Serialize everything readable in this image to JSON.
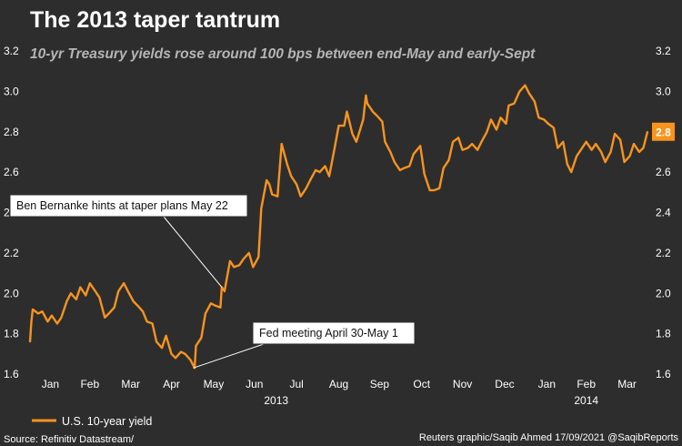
{
  "chart_data": {
    "type": "line",
    "title": "The 2013 taper tantrum",
    "subtitle": "10-yr Treasury yields rose around 100 bps between end-May and early-Sept",
    "ylim": [
      1.6,
      3.2
    ],
    "y_ticks": [
      "1.6",
      "1.8",
      "2.0",
      "2.2",
      "2.4",
      "2.6",
      "2.8",
      "3.0",
      "3.2"
    ],
    "x_start": "2013-01-01",
    "x_end": "2014-03-31",
    "month_labels": [
      {
        "label": "Jan",
        "date": "2013-01-16"
      },
      {
        "label": "Feb",
        "date": "2013-02-14"
      },
      {
        "label": "Mar",
        "date": "2013-03-16"
      },
      {
        "label": "Apr",
        "date": "2013-04-15"
      },
      {
        "label": "May",
        "date": "2013-05-16"
      },
      {
        "label": "Jun",
        "date": "2013-06-15"
      },
      {
        "label": "Jul",
        "date": "2013-07-16"
      },
      {
        "label": "Aug",
        "date": "2013-08-16"
      },
      {
        "label": "Sep",
        "date": "2013-09-15"
      },
      {
        "label": "Oct",
        "date": "2013-10-16"
      },
      {
        "label": "Nov",
        "date": "2013-11-15"
      },
      {
        "label": "Dec",
        "date": "2013-12-16"
      },
      {
        "label": "Jan",
        "date": "2014-01-16"
      },
      {
        "label": "Feb",
        "date": "2014-02-14"
      },
      {
        "label": "Mar",
        "date": "2014-03-16"
      }
    ],
    "year_labels": [
      {
        "label": "2013",
        "date": "2013-07-01"
      },
      {
        "label": "2014",
        "date": "2014-02-14"
      }
    ],
    "grid": false,
    "legend_position": "bottom-left",
    "series": [
      {
        "name": "U.S. 10-year yield",
        "color": "#f7941d",
        "points": [
          [
            "2013-01-01",
            1.76
          ],
          [
            "2013-01-02",
            1.86
          ],
          [
            "2013-01-03",
            1.92
          ],
          [
            "2013-01-07",
            1.9
          ],
          [
            "2013-01-10",
            1.91
          ],
          [
            "2013-01-14",
            1.86
          ],
          [
            "2013-01-17",
            1.89
          ],
          [
            "2013-01-21",
            1.85
          ],
          [
            "2013-01-24",
            1.88
          ],
          [
            "2013-01-28",
            1.96
          ],
          [
            "2013-01-31",
            2.0
          ],
          [
            "2013-02-04",
            1.97
          ],
          [
            "2013-02-07",
            2.03
          ],
          [
            "2013-02-11",
            1.99
          ],
          [
            "2013-02-14",
            2.05
          ],
          [
            "2013-02-18",
            2.01
          ],
          [
            "2013-02-21",
            1.98
          ],
          [
            "2013-02-25",
            1.88
          ],
          [
            "2013-02-28",
            1.9
          ],
          [
            "2013-03-04",
            1.93
          ],
          [
            "2013-03-07",
            2.01
          ],
          [
            "2013-03-11",
            2.05
          ],
          [
            "2013-03-14",
            2.01
          ],
          [
            "2013-03-18",
            1.96
          ],
          [
            "2013-03-21",
            1.94
          ],
          [
            "2013-03-25",
            1.91
          ],
          [
            "2013-03-28",
            1.86
          ],
          [
            "2013-04-01",
            1.85
          ],
          [
            "2013-04-04",
            1.76
          ],
          [
            "2013-04-08",
            1.73
          ],
          [
            "2013-04-11",
            1.79
          ],
          [
            "2013-04-15",
            1.7
          ],
          [
            "2013-04-18",
            1.68
          ],
          [
            "2013-04-22",
            1.71
          ],
          [
            "2013-04-25",
            1.7
          ],
          [
            "2013-04-29",
            1.67
          ],
          [
            "2013-05-02",
            1.63
          ],
          [
            "2013-05-03",
            1.74
          ],
          [
            "2013-05-07",
            1.78
          ],
          [
            "2013-05-10",
            1.9
          ],
          [
            "2013-05-14",
            1.95
          ],
          [
            "2013-05-17",
            1.94
          ],
          [
            "2013-05-21",
            1.93
          ],
          [
            "2013-05-22",
            2.03
          ],
          [
            "2013-05-24",
            2.01
          ],
          [
            "2013-05-28",
            2.16
          ],
          [
            "2013-05-31",
            2.13
          ],
          [
            "2013-06-04",
            2.14
          ],
          [
            "2013-06-07",
            2.17
          ],
          [
            "2013-06-11",
            2.2
          ],
          [
            "2013-06-14",
            2.13
          ],
          [
            "2013-06-18",
            2.18
          ],
          [
            "2013-06-20",
            2.42
          ],
          [
            "2013-06-24",
            2.56
          ],
          [
            "2013-06-26",
            2.54
          ],
          [
            "2013-06-28",
            2.49
          ],
          [
            "2013-07-02",
            2.48
          ],
          [
            "2013-07-05",
            2.74
          ],
          [
            "2013-07-09",
            2.64
          ],
          [
            "2013-07-12",
            2.58
          ],
          [
            "2013-07-16",
            2.54
          ],
          [
            "2013-07-19",
            2.48
          ],
          [
            "2013-07-23",
            2.52
          ],
          [
            "2013-07-26",
            2.56
          ],
          [
            "2013-07-30",
            2.61
          ],
          [
            "2013-08-02",
            2.6
          ],
          [
            "2013-08-06",
            2.63
          ],
          [
            "2013-08-09",
            2.58
          ],
          [
            "2013-08-13",
            2.72
          ],
          [
            "2013-08-16",
            2.83
          ],
          [
            "2013-08-20",
            2.83
          ],
          [
            "2013-08-22",
            2.9
          ],
          [
            "2013-08-26",
            2.79
          ],
          [
            "2013-08-29",
            2.75
          ],
          [
            "2013-09-03",
            2.86
          ],
          [
            "2013-09-05",
            2.98
          ],
          [
            "2013-09-06",
            2.94
          ],
          [
            "2013-09-10",
            2.9
          ],
          [
            "2013-09-13",
            2.88
          ],
          [
            "2013-09-17",
            2.85
          ],
          [
            "2013-09-19",
            2.75
          ],
          [
            "2013-09-23",
            2.7
          ],
          [
            "2013-09-26",
            2.65
          ],
          [
            "2013-09-30",
            2.61
          ],
          [
            "2013-10-03",
            2.62
          ],
          [
            "2013-10-07",
            2.63
          ],
          [
            "2013-10-10",
            2.69
          ],
          [
            "2013-10-15",
            2.73
          ],
          [
            "2013-10-18",
            2.59
          ],
          [
            "2013-10-22",
            2.51
          ],
          [
            "2013-10-25",
            2.51
          ],
          [
            "2013-10-29",
            2.52
          ],
          [
            "2013-11-01",
            2.62
          ],
          [
            "2013-11-05",
            2.66
          ],
          [
            "2013-11-08",
            2.75
          ],
          [
            "2013-11-12",
            2.77
          ],
          [
            "2013-11-15",
            2.71
          ],
          [
            "2013-11-19",
            2.72
          ],
          [
            "2013-11-22",
            2.74
          ],
          [
            "2013-11-26",
            2.71
          ],
          [
            "2013-11-29",
            2.75
          ],
          [
            "2013-12-03",
            2.8
          ],
          [
            "2013-12-06",
            2.86
          ],
          [
            "2013-12-10",
            2.81
          ],
          [
            "2013-12-13",
            2.87
          ],
          [
            "2013-12-17",
            2.84
          ],
          [
            "2013-12-19",
            2.93
          ],
          [
            "2013-12-23",
            2.94
          ],
          [
            "2013-12-27",
            3.0
          ],
          [
            "2013-12-31",
            3.03
          ],
          [
            "2014-01-03",
            2.99
          ],
          [
            "2014-01-07",
            2.95
          ],
          [
            "2014-01-10",
            2.87
          ],
          [
            "2014-01-14",
            2.86
          ],
          [
            "2014-01-17",
            2.84
          ],
          [
            "2014-01-21",
            2.82
          ],
          [
            "2014-01-24",
            2.72
          ],
          [
            "2014-01-28",
            2.75
          ],
          [
            "2014-01-31",
            2.64
          ],
          [
            "2014-02-03",
            2.6
          ],
          [
            "2014-02-07",
            2.68
          ],
          [
            "2014-02-11",
            2.72
          ],
          [
            "2014-02-14",
            2.75
          ],
          [
            "2014-02-18",
            2.71
          ],
          [
            "2014-02-21",
            2.74
          ],
          [
            "2014-02-25",
            2.7
          ],
          [
            "2014-02-28",
            2.65
          ],
          [
            "2014-03-04",
            2.7
          ],
          [
            "2014-03-07",
            2.79
          ],
          [
            "2014-03-11",
            2.76
          ],
          [
            "2014-03-14",
            2.65
          ],
          [
            "2014-03-18",
            2.68
          ],
          [
            "2014-03-21",
            2.74
          ],
          [
            "2014-03-25",
            2.7
          ],
          [
            "2014-03-28",
            2.72
          ],
          [
            "2014-03-31",
            2.8
          ]
        ]
      }
    ],
    "last_value_label": "2.8",
    "annotations": [
      {
        "text": "Ben Bernanke hints at taper plans May 22",
        "date": "2013-05-22",
        "value": 2.03
      },
      {
        "text": "Fed meeting April 30-May 1",
        "date": "2013-05-01",
        "value": 1.63
      }
    ]
  },
  "legend": {
    "label": "U.S. 10-year yield"
  },
  "footer": {
    "source": "Source: Refinitiv Datastream/",
    "credit": "Reuters graphic/Saqib Ahmed 17/09/2021 @SaqibReports"
  }
}
